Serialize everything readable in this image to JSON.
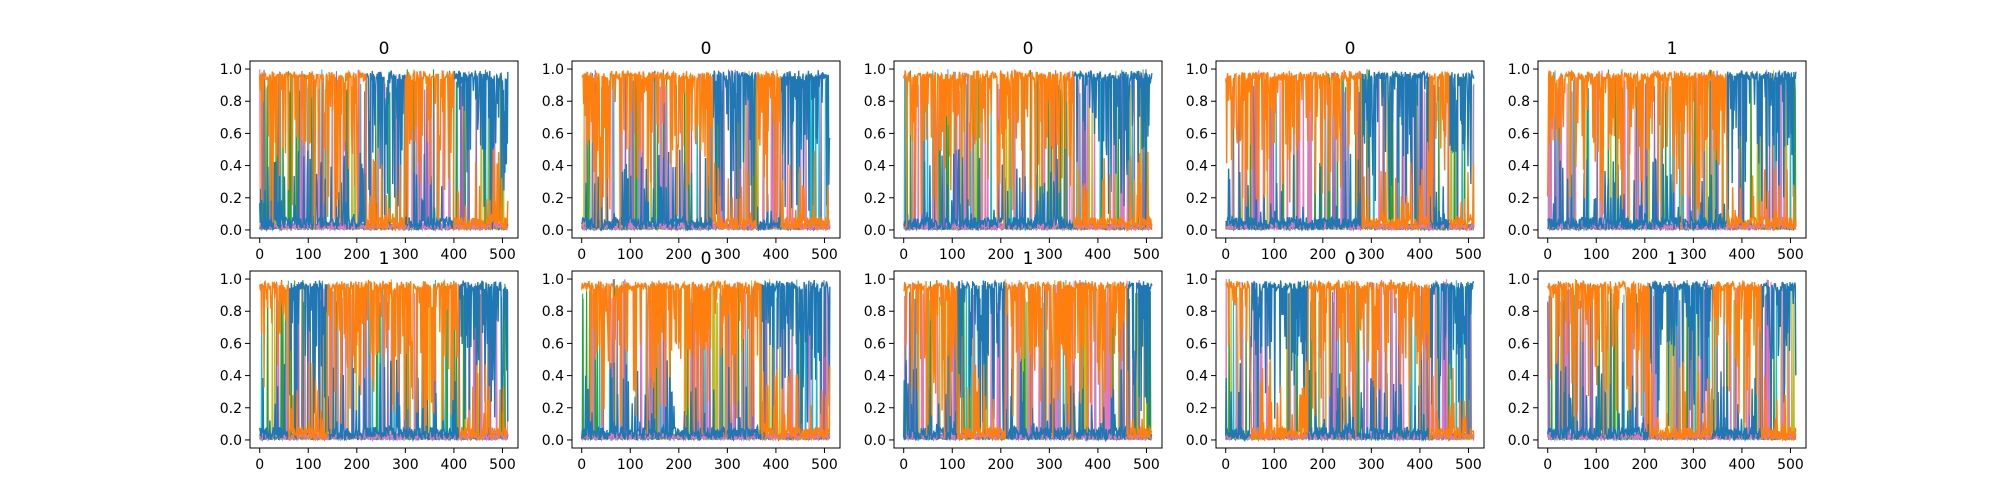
{
  "figure": {
    "grid": false,
    "legend": "none"
  },
  "chart_data": [
    {
      "type": "line",
      "title": "0",
      "xlabel": "",
      "ylabel": "",
      "xlim": [
        -20,
        532
      ],
      "ylim": [
        -0.05,
        1.05
      ],
      "xticks": [
        0,
        100,
        200,
        300,
        400,
        500
      ],
      "yticks": [
        0.0,
        0.2,
        0.4,
        0.6,
        0.8,
        1.0
      ],
      "xtick_labels": [
        "0",
        "100",
        "200",
        "300",
        "400",
        "500"
      ],
      "ytick_labels": [
        "0.0",
        "0.2",
        "0.4",
        "0.6",
        "0.8",
        "1.0"
      ],
      "n_points": 512,
      "dominant_segments": [
        {
          "x_start": 0,
          "x_end": 220,
          "series": "orange"
        },
        {
          "x_start": 220,
          "x_end": 300,
          "series": "blue"
        },
        {
          "x_start": 300,
          "x_end": 400,
          "series": "orange"
        },
        {
          "x_start": 400,
          "x_end": 511,
          "series": "blue"
        }
      ],
      "series": [
        {
          "color": "#ff7f0e"
        },
        {
          "color": "#1f77b4"
        },
        {
          "color": "#17becf"
        },
        {
          "color": "#bcbd22"
        },
        {
          "color": "#2ca02c"
        },
        {
          "color": "#9467bd"
        },
        {
          "color": "#e377c2"
        }
      ]
    },
    {
      "type": "line",
      "title": "0",
      "xlabel": "",
      "ylabel": "",
      "xlim": [
        -20,
        532
      ],
      "ylim": [
        -0.05,
        1.05
      ],
      "xticks": [
        0,
        100,
        200,
        300,
        400,
        500
      ],
      "yticks": [
        0.0,
        0.2,
        0.4,
        0.6,
        0.8,
        1.0
      ],
      "xtick_labels": [
        "0",
        "100",
        "200",
        "300",
        "400",
        "500"
      ],
      "ytick_labels": [
        "0.0",
        "0.2",
        "0.4",
        "0.6",
        "0.8",
        "1.0"
      ],
      "n_points": 512,
      "dominant_segments": [
        {
          "x_start": 0,
          "x_end": 270,
          "series": "orange"
        },
        {
          "x_start": 270,
          "x_end": 360,
          "series": "blue"
        },
        {
          "x_start": 360,
          "x_end": 410,
          "series": "orange"
        },
        {
          "x_start": 410,
          "x_end": 511,
          "series": "blue"
        }
      ],
      "series": [
        {
          "color": "#ff7f0e"
        },
        {
          "color": "#1f77b4"
        },
        {
          "color": "#17becf"
        },
        {
          "color": "#bcbd22"
        },
        {
          "color": "#2ca02c"
        },
        {
          "color": "#9467bd"
        },
        {
          "color": "#e377c2"
        }
      ]
    },
    {
      "type": "line",
      "title": "0",
      "xlabel": "",
      "ylabel": "",
      "xlim": [
        -20,
        532
      ],
      "ylim": [
        -0.05,
        1.05
      ],
      "xticks": [
        0,
        100,
        200,
        300,
        400,
        500
      ],
      "yticks": [
        0.0,
        0.2,
        0.4,
        0.6,
        0.8,
        1.0
      ],
      "xtick_labels": [
        "0",
        "100",
        "200",
        "300",
        "400",
        "500"
      ],
      "ytick_labels": [
        "0.0",
        "0.2",
        "0.4",
        "0.6",
        "0.8",
        "1.0"
      ],
      "n_points": 512,
      "dominant_segments": [
        {
          "x_start": 0,
          "x_end": 350,
          "series": "orange"
        },
        {
          "x_start": 350,
          "x_end": 511,
          "series": "blue"
        }
      ],
      "series": [
        {
          "color": "#ff7f0e"
        },
        {
          "color": "#1f77b4"
        },
        {
          "color": "#17becf"
        },
        {
          "color": "#bcbd22"
        },
        {
          "color": "#2ca02c"
        },
        {
          "color": "#9467bd"
        },
        {
          "color": "#e377c2"
        }
      ]
    },
    {
      "type": "line",
      "title": "0",
      "xlabel": "",
      "ylabel": "",
      "xlim": [
        -20,
        532
      ],
      "ylim": [
        -0.05,
        1.05
      ],
      "xticks": [
        0,
        100,
        200,
        300,
        400,
        500
      ],
      "yticks": [
        0.0,
        0.2,
        0.4,
        0.6,
        0.8,
        1.0
      ],
      "xtick_labels": [
        "0",
        "100",
        "200",
        "300",
        "400",
        "500"
      ],
      "ytick_labels": [
        "0.0",
        "0.2",
        "0.4",
        "0.6",
        "0.8",
        "1.0"
      ],
      "n_points": 512,
      "dominant_segments": [
        {
          "x_start": 0,
          "x_end": 280,
          "series": "orange"
        },
        {
          "x_start": 280,
          "x_end": 420,
          "series": "blue"
        },
        {
          "x_start": 420,
          "x_end": 460,
          "series": "orange"
        },
        {
          "x_start": 460,
          "x_end": 511,
          "series": "blue"
        }
      ],
      "series": [
        {
          "color": "#ff7f0e"
        },
        {
          "color": "#1f77b4"
        },
        {
          "color": "#17becf"
        },
        {
          "color": "#bcbd22"
        },
        {
          "color": "#2ca02c"
        },
        {
          "color": "#9467bd"
        },
        {
          "color": "#e377c2"
        }
      ]
    },
    {
      "type": "line",
      "title": "1",
      "xlabel": "",
      "ylabel": "",
      "xlim": [
        -20,
        532
      ],
      "ylim": [
        -0.05,
        1.05
      ],
      "xticks": [
        0,
        100,
        200,
        300,
        400,
        500
      ],
      "yticks": [
        0.0,
        0.2,
        0.4,
        0.6,
        0.8,
        1.0
      ],
      "xtick_labels": [
        "0",
        "100",
        "200",
        "300",
        "400",
        "500"
      ],
      "ytick_labels": [
        "0.0",
        "0.2",
        "0.4",
        "0.6",
        "0.8",
        "1.0"
      ],
      "n_points": 512,
      "dominant_segments": [
        {
          "x_start": 0,
          "x_end": 370,
          "series": "orange"
        },
        {
          "x_start": 370,
          "x_end": 511,
          "series": "blue"
        }
      ],
      "series": [
        {
          "color": "#ff7f0e"
        },
        {
          "color": "#1f77b4"
        },
        {
          "color": "#17becf"
        },
        {
          "color": "#bcbd22"
        },
        {
          "color": "#2ca02c"
        },
        {
          "color": "#9467bd"
        },
        {
          "color": "#e377c2"
        }
      ]
    },
    {
      "type": "line",
      "title": "1",
      "xlabel": "",
      "ylabel": "",
      "xlim": [
        -20,
        532
      ],
      "ylim": [
        -0.05,
        1.05
      ],
      "xticks": [
        0,
        100,
        200,
        300,
        400,
        500
      ],
      "yticks": [
        0.0,
        0.2,
        0.4,
        0.6,
        0.8,
        1.0
      ],
      "xtick_labels": [
        "0",
        "100",
        "200",
        "300",
        "400",
        "500"
      ],
      "ytick_labels": [
        "0.0",
        "0.2",
        "0.4",
        "0.6",
        "0.8",
        "1.0"
      ],
      "n_points": 512,
      "dominant_segments": [
        {
          "x_start": 0,
          "x_end": 60,
          "series": "orange"
        },
        {
          "x_start": 60,
          "x_end": 140,
          "series": "blue"
        },
        {
          "x_start": 140,
          "x_end": 410,
          "series": "orange"
        },
        {
          "x_start": 410,
          "x_end": 511,
          "series": "blue"
        }
      ],
      "series": [
        {
          "color": "#ff7f0e"
        },
        {
          "color": "#1f77b4"
        },
        {
          "color": "#17becf"
        },
        {
          "color": "#bcbd22"
        },
        {
          "color": "#2ca02c"
        },
        {
          "color": "#9467bd"
        },
        {
          "color": "#e377c2"
        }
      ]
    },
    {
      "type": "line",
      "title": "0",
      "xlabel": "",
      "ylabel": "",
      "xlim": [
        -20,
        532
      ],
      "ylim": [
        -0.05,
        1.05
      ],
      "xticks": [
        0,
        100,
        200,
        300,
        400,
        500
      ],
      "yticks": [
        0.0,
        0.2,
        0.4,
        0.6,
        0.8,
        1.0
      ],
      "xtick_labels": [
        "0",
        "100",
        "200",
        "300",
        "400",
        "500"
      ],
      "ytick_labels": [
        "0.0",
        "0.2",
        "0.4",
        "0.6",
        "0.8",
        "1.0"
      ],
      "n_points": 512,
      "dominant_segments": [
        {
          "x_start": 0,
          "x_end": 370,
          "series": "orange"
        },
        {
          "x_start": 370,
          "x_end": 511,
          "series": "blue"
        }
      ],
      "series": [
        {
          "color": "#ff7f0e"
        },
        {
          "color": "#1f77b4"
        },
        {
          "color": "#17becf"
        },
        {
          "color": "#bcbd22"
        },
        {
          "color": "#2ca02c"
        },
        {
          "color": "#9467bd"
        },
        {
          "color": "#e377c2"
        }
      ]
    },
    {
      "type": "line",
      "title": "1",
      "xlabel": "",
      "ylabel": "",
      "xlim": [
        -20,
        532
      ],
      "ylim": [
        -0.05,
        1.05
      ],
      "xticks": [
        0,
        100,
        200,
        300,
        400,
        500
      ],
      "yticks": [
        0.0,
        0.2,
        0.4,
        0.6,
        0.8,
        1.0
      ],
      "xtick_labels": [
        "0",
        "100",
        "200",
        "300",
        "400",
        "500"
      ],
      "ytick_labels": [
        "0.0",
        "0.2",
        "0.4",
        "0.6",
        "0.8",
        "1.0"
      ],
      "n_points": 512,
      "dominant_segments": [
        {
          "x_start": 0,
          "x_end": 110,
          "series": "orange"
        },
        {
          "x_start": 110,
          "x_end": 210,
          "series": "blue"
        },
        {
          "x_start": 210,
          "x_end": 460,
          "series": "orange"
        },
        {
          "x_start": 460,
          "x_end": 511,
          "series": "blue"
        }
      ],
      "series": [
        {
          "color": "#ff7f0e"
        },
        {
          "color": "#1f77b4"
        },
        {
          "color": "#17becf"
        },
        {
          "color": "#bcbd22"
        },
        {
          "color": "#2ca02c"
        },
        {
          "color": "#9467bd"
        },
        {
          "color": "#e377c2"
        }
      ]
    },
    {
      "type": "line",
      "title": "0",
      "xlabel": "",
      "ylabel": "",
      "xlim": [
        -20,
        532
      ],
      "ylim": [
        -0.05,
        1.05
      ],
      "xticks": [
        0,
        100,
        200,
        300,
        400,
        500
      ],
      "yticks": [
        0.0,
        0.2,
        0.4,
        0.6,
        0.8,
        1.0
      ],
      "xtick_labels": [
        "0",
        "100",
        "200",
        "300",
        "400",
        "500"
      ],
      "ytick_labels": [
        "0.0",
        "0.2",
        "0.4",
        "0.6",
        "0.8",
        "1.0"
      ],
      "n_points": 512,
      "dominant_segments": [
        {
          "x_start": 0,
          "x_end": 50,
          "series": "orange"
        },
        {
          "x_start": 50,
          "x_end": 170,
          "series": "blue"
        },
        {
          "x_start": 170,
          "x_end": 420,
          "series": "orange"
        },
        {
          "x_start": 420,
          "x_end": 511,
          "series": "blue"
        }
      ],
      "series": [
        {
          "color": "#ff7f0e"
        },
        {
          "color": "#1f77b4"
        },
        {
          "color": "#17becf"
        },
        {
          "color": "#bcbd22"
        },
        {
          "color": "#2ca02c"
        },
        {
          "color": "#9467bd"
        },
        {
          "color": "#e377c2"
        }
      ]
    },
    {
      "type": "line",
      "title": "1",
      "xlabel": "",
      "ylabel": "",
      "xlim": [
        -20,
        532
      ],
      "ylim": [
        -0.05,
        1.05
      ],
      "xticks": [
        0,
        100,
        200,
        300,
        400,
        500
      ],
      "yticks": [
        0.0,
        0.2,
        0.4,
        0.6,
        0.8,
        1.0
      ],
      "xtick_labels": [
        "0",
        "100",
        "200",
        "300",
        "400",
        "500"
      ],
      "ytick_labels": [
        "0.0",
        "0.2",
        "0.4",
        "0.6",
        "0.8",
        "1.0"
      ],
      "n_points": 512,
      "dominant_segments": [
        {
          "x_start": 0,
          "x_end": 210,
          "series": "orange"
        },
        {
          "x_start": 210,
          "x_end": 340,
          "series": "blue"
        },
        {
          "x_start": 340,
          "x_end": 440,
          "series": "orange"
        },
        {
          "x_start": 440,
          "x_end": 511,
          "series": "blue"
        }
      ],
      "series": [
        {
          "color": "#ff7f0e"
        },
        {
          "color": "#1f77b4"
        },
        {
          "color": "#17becf"
        },
        {
          "color": "#bcbd22"
        },
        {
          "color": "#2ca02c"
        },
        {
          "color": "#9467bd"
        },
        {
          "color": "#e377c2"
        }
      ]
    }
  ]
}
